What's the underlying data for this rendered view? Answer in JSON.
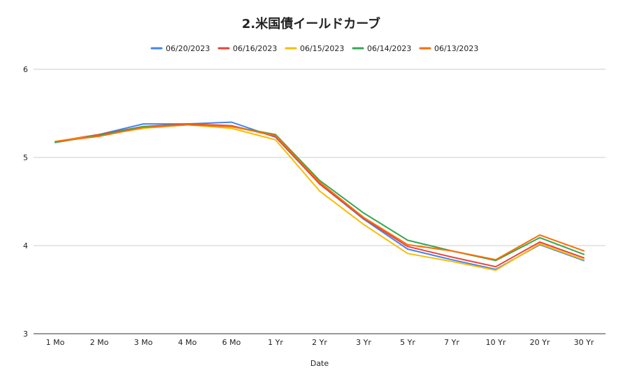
{
  "chart_data": {
    "type": "line",
    "title": "2.米国債イールドカーブ",
    "xlabel": "Date",
    "ylabel": "",
    "ylim": [
      3,
      6
    ],
    "yticks": [
      "3",
      "4",
      "5",
      "6"
    ],
    "grid": true,
    "legend_position": "top",
    "categories": [
      "1 Mo",
      "2 Mo",
      "3 Mo",
      "4 Mo",
      "6 Mo",
      "1 Yr",
      "2 Yr",
      "3 Yr",
      "5 Yr",
      "7 Yr",
      "10 Yr",
      "20 Yr",
      "30 Yr"
    ],
    "series": [
      {
        "name": "06/20/2023",
        "color": "#4285f4",
        "values": [
          5.17,
          5.26,
          5.38,
          5.38,
          5.4,
          5.23,
          4.7,
          4.3,
          3.96,
          3.84,
          3.73,
          4.01,
          3.83
        ]
      },
      {
        "name": "06/16/2023",
        "color": "#ea4335",
        "values": [
          5.18,
          5.26,
          5.35,
          5.38,
          5.36,
          5.24,
          4.7,
          4.31,
          3.99,
          3.87,
          3.76,
          4.04,
          3.86
        ]
      },
      {
        "name": "06/15/2023",
        "color": "#fbbc04",
        "values": [
          5.18,
          5.25,
          5.33,
          5.37,
          5.33,
          5.2,
          4.62,
          4.24,
          3.91,
          3.82,
          3.72,
          4.02,
          3.84
        ]
      },
      {
        "name": "06/14/2023",
        "color": "#34a853",
        "values": [
          5.17,
          5.25,
          5.35,
          5.37,
          5.35,
          5.26,
          4.74,
          4.37,
          4.06,
          3.94,
          3.83,
          4.09,
          3.9
        ]
      },
      {
        "name": "06/13/2023",
        "color": "#ff6d01",
        "values": [
          5.18,
          5.24,
          5.34,
          5.37,
          5.35,
          5.25,
          4.72,
          4.32,
          4.01,
          3.94,
          3.84,
          4.12,
          3.94
        ]
      }
    ]
  }
}
